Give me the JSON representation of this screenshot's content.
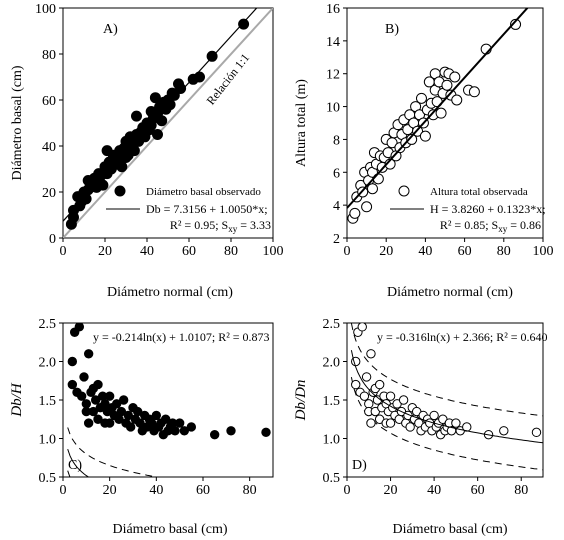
{
  "chart_data": [
    {
      "panel_label": "A)",
      "type": "scatter",
      "ylabel": "Diámetro basal (cm)",
      "xlabel": "",
      "xlim": [
        0,
        100
      ],
      "ylim": [
        0,
        100
      ],
      "xticks": [
        0,
        20,
        40,
        60,
        80,
        100
      ],
      "yticks": [
        0,
        20,
        40,
        60,
        80,
        100
      ],
      "marker": "filled",
      "points": [
        [
          4,
          6
        ],
        [
          5,
          9
        ],
        [
          5,
          12
        ],
        [
          7,
          18
        ],
        [
          8,
          14
        ],
        [
          9,
          16
        ],
        [
          10,
          20
        ],
        [
          11,
          17
        ],
        [
          12,
          25
        ],
        [
          12,
          21
        ],
        [
          13,
          22
        ],
        [
          14,
          24
        ],
        [
          15,
          26
        ],
        [
          16,
          22
        ],
        [
          17,
          28
        ],
        [
          18,
          27
        ],
        [
          19,
          23
        ],
        [
          20,
          31
        ],
        [
          21,
          38
        ],
        [
          21,
          28
        ],
        [
          22,
          33
        ],
        [
          23,
          30
        ],
        [
          24,
          36
        ],
        [
          25,
          32
        ],
        [
          26,
          34
        ],
        [
          27,
          38
        ],
        [
          28,
          31
        ],
        [
          29,
          39
        ],
        [
          30,
          35
        ],
        [
          30,
          42
        ],
        [
          31,
          36
        ],
        [
          32,
          44
        ],
        [
          33,
          40
        ],
        [
          34,
          38
        ],
        [
          35,
          45
        ],
        [
          35,
          53
        ],
        [
          36,
          42
        ],
        [
          37,
          46
        ],
        [
          38,
          48
        ],
        [
          39,
          44
        ],
        [
          40,
          50
        ],
        [
          41,
          47
        ],
        [
          42,
          55
        ],
        [
          42,
          49
        ],
        [
          43,
          52
        ],
        [
          44,
          61
        ],
        [
          45,
          54
        ],
        [
          45,
          45
        ],
        [
          46,
          57
        ],
        [
          47,
          51
        ],
        [
          48,
          59
        ],
        [
          49,
          56
        ],
        [
          50,
          60
        ],
        [
          51,
          58
        ],
        [
          52,
          63
        ],
        [
          53,
          62
        ],
        [
          55,
          67
        ],
        [
          56,
          65
        ],
        [
          62,
          69
        ],
        [
          65,
          70
        ],
        [
          71,
          79
        ],
        [
          86,
          93
        ]
      ],
      "fit_line": {
        "intercept": 7.3156,
        "slope": 1.005
      },
      "ref_line": {
        "intercept": 0,
        "slope": 1
      },
      "ref_label": "Relación 1:1",
      "legend_symbol_label": "Diámetro basal observado",
      "legend_line_label": "Db = 7.3156 + 1.0050*x;",
      "legend_stats_r2": "R² = 0.95;",
      "legend_stats_s": "S",
      "legend_stats_sub": "xy",
      "legend_stats_val": " = 3.33"
    },
    {
      "panel_label": "B)",
      "type": "scatter",
      "ylabel": "Altura total (m)",
      "xlabel": "",
      "xlim": [
        0,
        100
      ],
      "ylim": [
        2,
        16
      ],
      "xticks": [
        0,
        20,
        40,
        60,
        80,
        100
      ],
      "yticks": [
        2,
        4,
        6,
        8,
        10,
        12,
        14,
        16
      ],
      "marker": "open",
      "points": [
        [
          3,
          3.2
        ],
        [
          4,
          3.5
        ],
        [
          5,
          4.5
        ],
        [
          7,
          5.2
        ],
        [
          8,
          4.8
        ],
        [
          9,
          6.0
        ],
        [
          10,
          3.9
        ],
        [
          11,
          5.5
        ],
        [
          12,
          6.3
        ],
        [
          13,
          6.0
        ],
        [
          13,
          5.0
        ],
        [
          14,
          7.2
        ],
        [
          15,
          6.5
        ],
        [
          16,
          5.6
        ],
        [
          17,
          7.0
        ],
        [
          18,
          6.3
        ],
        [
          19,
          6.9
        ],
        [
          20,
          8.0
        ],
        [
          21,
          7.2
        ],
        [
          22,
          6.5
        ],
        [
          23,
          7.8
        ],
        [
          24,
          8.4
        ],
        [
          25,
          7.0
        ],
        [
          26,
          8.9
        ],
        [
          27,
          7.5
        ],
        [
          28,
          8.3
        ],
        [
          29,
          9.2
        ],
        [
          30,
          7.8
        ],
        [
          31,
          8.6
        ],
        [
          32,
          9.5
        ],
        [
          33,
          8.0
        ],
        [
          34,
          9.0
        ],
        [
          35,
          10.0
        ],
        [
          36,
          8.5
        ],
        [
          37,
          9.5
        ],
        [
          38,
          10.5
        ],
        [
          39,
          9.0
        ],
        [
          40,
          8.2
        ],
        [
          41,
          9.8
        ],
        [
          42,
          11.5
        ],
        [
          43,
          10.2
        ],
        [
          44,
          9.5
        ],
        [
          45,
          11.0
        ],
        [
          45,
          12.0
        ],
        [
          46,
          10.3
        ],
        [
          47,
          11.5
        ],
        [
          48,
          9.6
        ],
        [
          49,
          10.8
        ],
        [
          50,
          12.1
        ],
        [
          51,
          11.3
        ],
        [
          52,
          12.0
        ],
        [
          53,
          10.7
        ],
        [
          55,
          11.8
        ],
        [
          56,
          10.4
        ],
        [
          62,
          11.0
        ],
        [
          65,
          10.9
        ],
        [
          71,
          13.5
        ],
        [
          86,
          15.0
        ]
      ],
      "fit_line": {
        "intercept": 3.826,
        "slope": 0.1323
      },
      "legend_symbol_label": "Altura total observada",
      "legend_line_label": "H = 3.8260 + 0.1323*x;",
      "legend_stats_r2": "R² = 0.85;",
      "legend_stats_s": "S",
      "legend_stats_sub": "xy",
      "legend_stats_val": " = 0.86"
    },
    {
      "panel_label": "C)",
      "type": "scatter",
      "ylabel": "Db/H",
      "xlabel": "",
      "xlim": [
        0,
        90
      ],
      "ylim": [
        0.5,
        2.5
      ],
      "xticks": [
        0,
        20,
        40,
        60,
        80
      ],
      "yticks": [
        0.5,
        1.0,
        1.5,
        2.0,
        2.5
      ],
      "marker": "filled",
      "points": [
        [
          4,
          2.0
        ],
        [
          4,
          1.7
        ],
        [
          5,
          2.38
        ],
        [
          6,
          1.6
        ],
        [
          7,
          2.45
        ],
        [
          8,
          1.55
        ],
        [
          9,
          1.8
        ],
        [
          10,
          1.45
        ],
        [
          10,
          1.35
        ],
        [
          11,
          2.1
        ],
        [
          11,
          1.2
        ],
        [
          12,
          1.6
        ],
        [
          13,
          1.65
        ],
        [
          13,
          1.35
        ],
        [
          14,
          1.5
        ],
        [
          15,
          1.7
        ],
        [
          15,
          1.25
        ],
        [
          16,
          1.4
        ],
        [
          17,
          1.55
        ],
        [
          18,
          1.45
        ],
        [
          18,
          1.2
        ],
        [
          19,
          1.35
        ],
        [
          20,
          1.55
        ],
        [
          20,
          1.2
        ],
        [
          21,
          1.4
        ],
        [
          22,
          1.3
        ],
        [
          23,
          1.45
        ],
        [
          24,
          1.25
        ],
        [
          25,
          1.35
        ],
        [
          26,
          1.5
        ],
        [
          27,
          1.2
        ],
        [
          28,
          1.3
        ],
        [
          29,
          1.15
        ],
        [
          30,
          1.4
        ],
        [
          31,
          1.25
        ],
        [
          32,
          1.35
        ],
        [
          33,
          1.2
        ],
        [
          34,
          1.1
        ],
        [
          35,
          1.3
        ],
        [
          36,
          1.15
        ],
        [
          37,
          1.25
        ],
        [
          38,
          1.2
        ],
        [
          39,
          1.1
        ],
        [
          40,
          1.3
        ],
        [
          41,
          1.15
        ],
        [
          42,
          1.2
        ],
        [
          43,
          1.05
        ],
        [
          44,
          1.25
        ],
        [
          45,
          1.1
        ],
        [
          46,
          1.15
        ],
        [
          47,
          1.2
        ],
        [
          48,
          1.1
        ],
        [
          50,
          1.2
        ],
        [
          52,
          1.1
        ],
        [
          55,
          1.15
        ],
        [
          65,
          1.05
        ],
        [
          72,
          1.1
        ],
        [
          87,
          1.08
        ]
      ],
      "fit_curve": {
        "a": -0.214,
        "b": 1.0107
      },
      "band_curves": [
        {
          "a": -0.214,
          "b": 1.0107,
          "offset": 0.28
        },
        {
          "a": -0.214,
          "b": 1.0107,
          "offset": -0.28
        }
      ],
      "equation": "y = -0.214ln(x) + 1.0107; R² = 0.873"
    },
    {
      "panel_label": "D)",
      "type": "scatter",
      "ylabel": "Db/Dn",
      "xlabel": "",
      "xlim": [
        0,
        90
      ],
      "ylim": [
        0.5,
        2.5
      ],
      "xticks": [
        0,
        20,
        40,
        60,
        80
      ],
      "yticks": [
        0.5,
        1.0,
        1.5,
        2.0,
        2.5
      ],
      "marker": "open",
      "points": [
        [
          4,
          2.0
        ],
        [
          4,
          1.7
        ],
        [
          5,
          2.38
        ],
        [
          6,
          1.6
        ],
        [
          7,
          2.45
        ],
        [
          8,
          1.55
        ],
        [
          9,
          1.8
        ],
        [
          10,
          1.45
        ],
        [
          10,
          1.35
        ],
        [
          11,
          2.1
        ],
        [
          11,
          1.2
        ],
        [
          12,
          1.6
        ],
        [
          13,
          1.65
        ],
        [
          13,
          1.35
        ],
        [
          14,
          1.5
        ],
        [
          15,
          1.7
        ],
        [
          15,
          1.25
        ],
        [
          16,
          1.4
        ],
        [
          17,
          1.55
        ],
        [
          18,
          1.45
        ],
        [
          18,
          1.2
        ],
        [
          19,
          1.35
        ],
        [
          20,
          1.55
        ],
        [
          20,
          1.2
        ],
        [
          21,
          1.4
        ],
        [
          22,
          1.3
        ],
        [
          23,
          1.45
        ],
        [
          24,
          1.25
        ],
        [
          25,
          1.35
        ],
        [
          26,
          1.5
        ],
        [
          27,
          1.2
        ],
        [
          28,
          1.3
        ],
        [
          29,
          1.15
        ],
        [
          30,
          1.4
        ],
        [
          31,
          1.25
        ],
        [
          32,
          1.35
        ],
        [
          33,
          1.2
        ],
        [
          34,
          1.1
        ],
        [
          35,
          1.3
        ],
        [
          36,
          1.15
        ],
        [
          37,
          1.25
        ],
        [
          38,
          1.2
        ],
        [
          39,
          1.1
        ],
        [
          40,
          1.3
        ],
        [
          41,
          1.15
        ],
        [
          42,
          1.2
        ],
        [
          43,
          1.05
        ],
        [
          44,
          1.25
        ],
        [
          45,
          1.1
        ],
        [
          46,
          1.15
        ],
        [
          47,
          1.2
        ],
        [
          48,
          1.1
        ],
        [
          50,
          1.2
        ],
        [
          52,
          1.1
        ],
        [
          55,
          1.15
        ],
        [
          65,
          1.05
        ],
        [
          72,
          1.1
        ],
        [
          87,
          1.08
        ]
      ],
      "fit_curve": {
        "a": -0.316,
        "b": 2.366
      },
      "band_curves": [
        {
          "a": -0.316,
          "b": 2.366,
          "offset": 0.35
        },
        {
          "a": -0.316,
          "b": 2.366,
          "offset": -0.35
        }
      ],
      "equation": "y = -0.316ln(x) + 2.366; R² = 0.640"
    }
  ],
  "xaxis_titles": {
    "top": "Diámetro normal (cm)",
    "bottom": "Diámetro basal (cm)"
  }
}
